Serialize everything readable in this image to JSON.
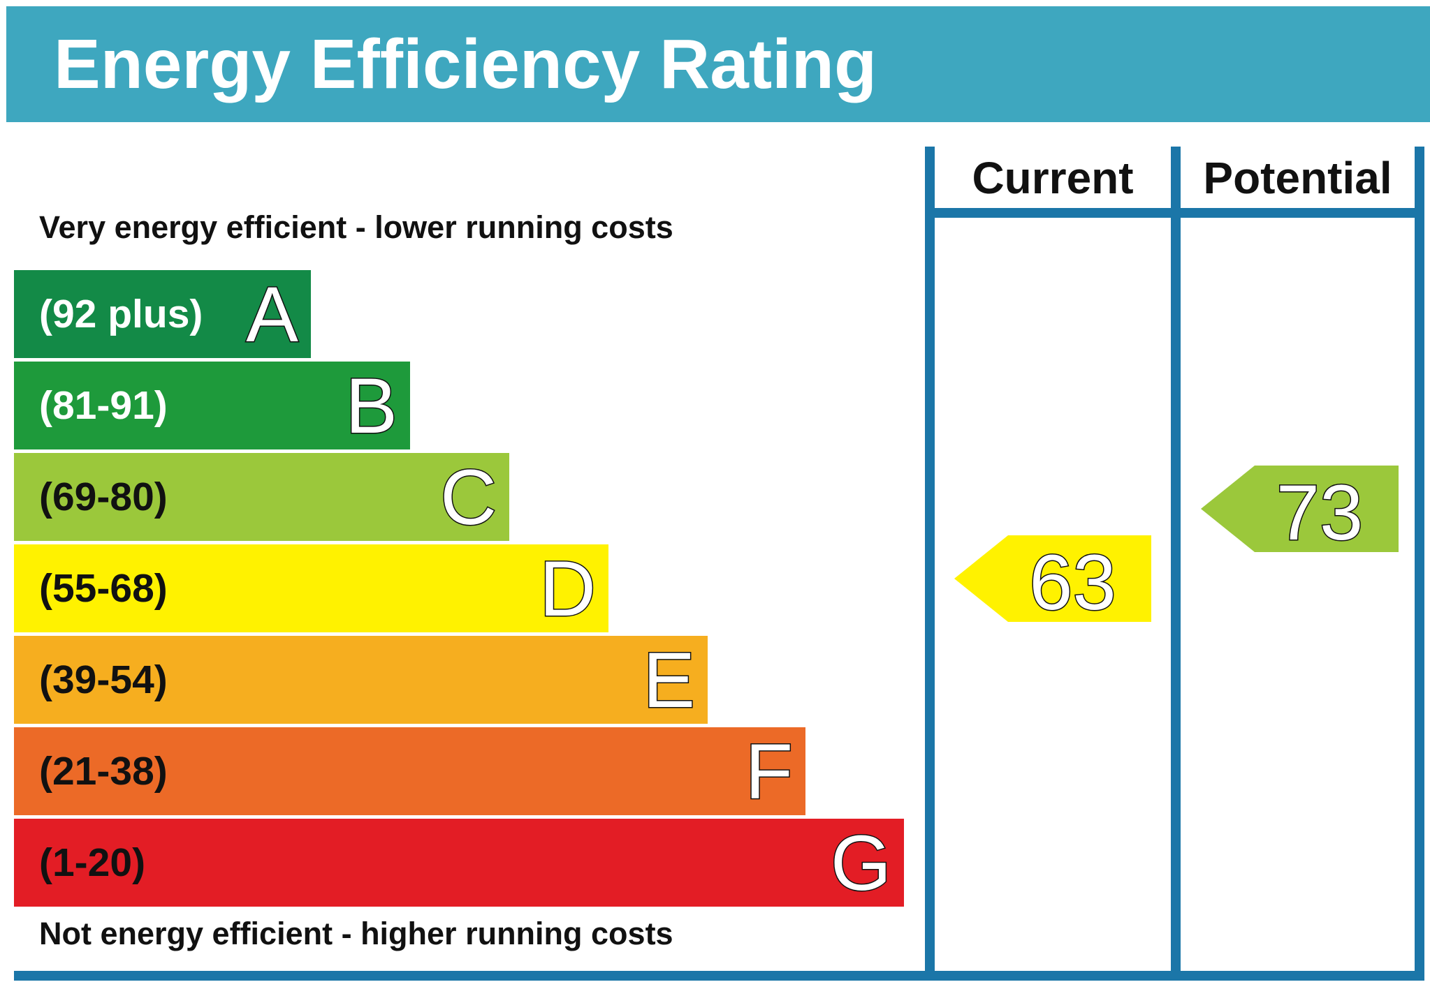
{
  "header": {
    "title": "Energy Efficiency Rating"
  },
  "columns": {
    "current": "Current",
    "potential": "Potential"
  },
  "notes": {
    "top": "Very energy efficient - lower running costs",
    "bottom": "Not energy efficient - higher running costs"
  },
  "chart_data": {
    "type": "bar",
    "bands": [
      {
        "letter": "A",
        "range": "(92 plus)",
        "color": "#138a47",
        "text_color": "#ffffff"
      },
      {
        "letter": "B",
        "range": "(81-91)",
        "color": "#1e9a3b",
        "text_color": "#ffffff"
      },
      {
        "letter": "C",
        "range": "(69-80)",
        "color": "#9bc83b",
        "text_color": "#111111"
      },
      {
        "letter": "D",
        "range": "(55-68)",
        "color": "#fff200",
        "text_color": "#111111"
      },
      {
        "letter": "E",
        "range": "(39-54)",
        "color": "#f6ae1f",
        "text_color": "#111111"
      },
      {
        "letter": "F",
        "range": "(21-38)",
        "color": "#ec6a27",
        "text_color": "#111111"
      },
      {
        "letter": "G",
        "range": "(1-20)",
        "color": "#e31d25",
        "text_color": "#111111"
      }
    ],
    "current": {
      "value": 63,
      "band": "D",
      "color": "#fff200"
    },
    "potential": {
      "value": 73,
      "band": "C",
      "color": "#9bc83b"
    }
  }
}
